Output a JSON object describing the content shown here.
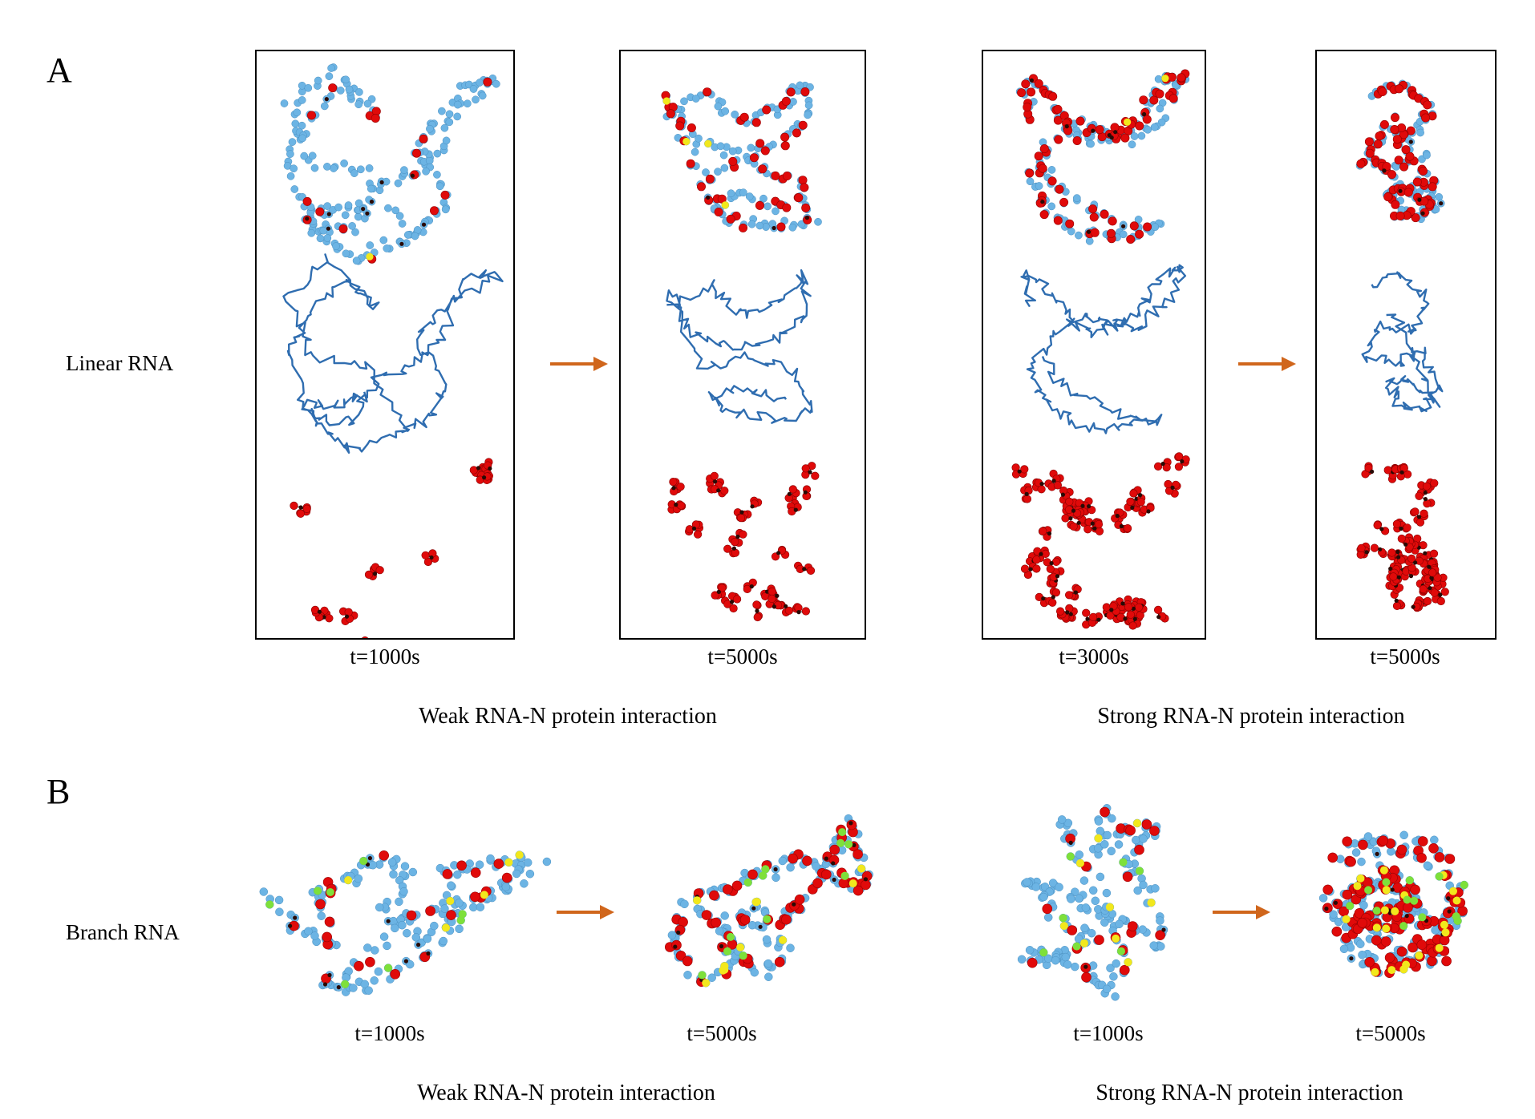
{
  "panels": {
    "a": {
      "letter": "A",
      "row_label": "Linear RNA",
      "times": [
        "t=1000s",
        "t=5000s",
        "t=3000s",
        "t=5000s"
      ],
      "conditions": [
        "Weak RNA-N protein interaction",
        "Strong RNA-N protein interaction"
      ]
    },
    "b": {
      "letter": "B",
      "row_label": "Branch RNA",
      "times": [
        "t=1000s",
        "t=5000s",
        "t=1000s",
        "t=5000s"
      ],
      "conditions": [
        "Weak RNA-N protein interaction",
        "Strong RNA-N protein interaction"
      ]
    }
  },
  "colors": {
    "rna_bead": "#6cb4e4",
    "rna_backbone": "#2f6db0",
    "protein": "#e00a0a",
    "protein_core": "#2a0a05",
    "end_bead": "#f2e81c",
    "branch_bead": "#7ee03a",
    "arrow": "#d0661c"
  }
}
